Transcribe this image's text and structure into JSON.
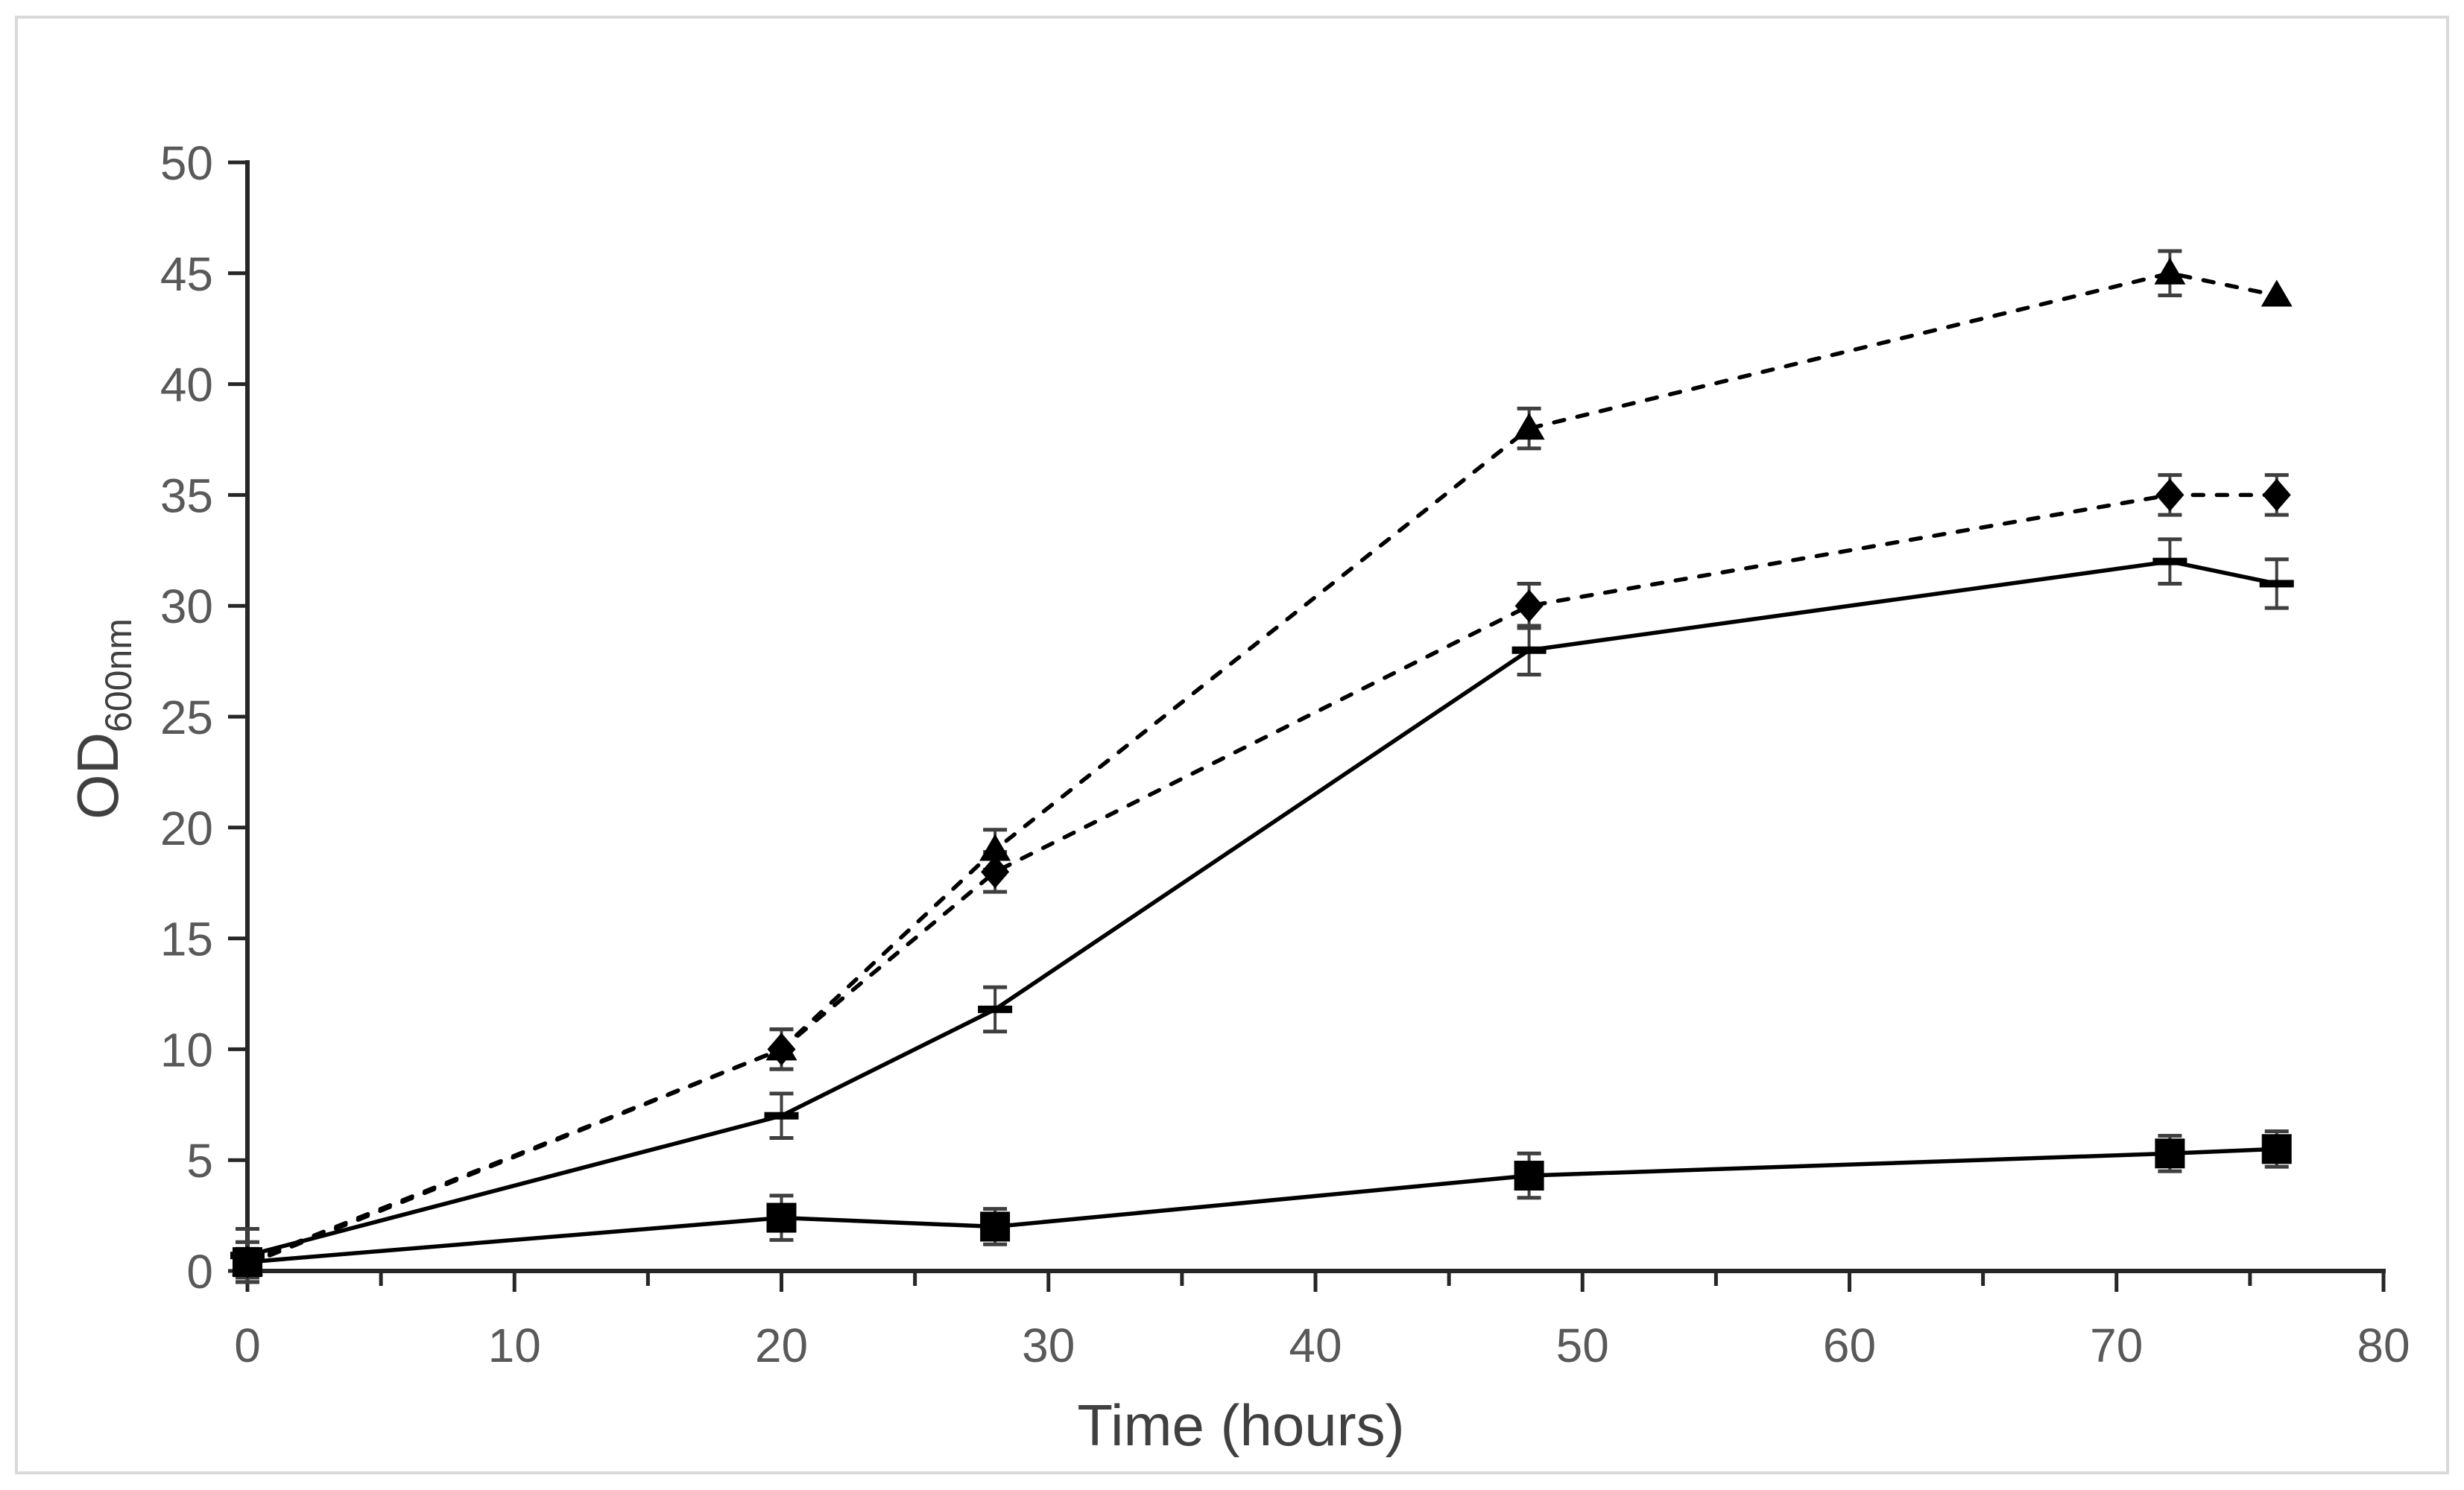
{
  "figure": {
    "background": "#ffffff",
    "border_color": "#d9d9d9"
  },
  "chart_data": {
    "type": "line",
    "title": "",
    "xlabel": "Time (hours)",
    "ylabel_main": "OD",
    "ylabel_sub": "600nm",
    "xlim": [
      0,
      80
    ],
    "ylim": [
      0,
      50
    ],
    "x_major_tick_step": 10,
    "x_minor_tick_step": 5,
    "y_tick_step": 5,
    "x_tick_labels": [
      "0",
      "10",
      "20",
      "30",
      "40",
      "50",
      "60",
      "70",
      "80"
    ],
    "y_tick_labels": [
      "0",
      "5",
      "10",
      "15",
      "20",
      "25",
      "30",
      "35",
      "40",
      "45",
      "50"
    ],
    "grid": false,
    "legend": "none",
    "axis_color": "#262626",
    "tick_label_color": "#595959",
    "axis_title_color": "#404040",
    "series_color": "#000000",
    "error_bar_color": "#3f3f3f",
    "series": [
      {
        "name": "triangle-dashed",
        "marker": "triangle",
        "line_style": "dashed",
        "x": [
          0,
          20,
          28,
          48,
          72,
          76
        ],
        "y": [
          0.3,
          10,
          19,
          38,
          45,
          44
        ],
        "err": [
          0.6,
          0.9,
          0.9,
          0.9,
          1.0,
          0
        ]
      },
      {
        "name": "diamond-dashed",
        "marker": "diamond",
        "line_style": "dashed",
        "x": [
          0,
          20,
          28,
          48,
          72,
          76
        ],
        "y": [
          0.4,
          10,
          18,
          30,
          35,
          35
        ],
        "err": [
          0.6,
          0.9,
          0.9,
          1.0,
          0.9,
          0.9
        ]
      },
      {
        "name": "dash-solid",
        "marker": "dash",
        "line_style": "solid",
        "x": [
          0,
          20,
          28,
          48,
          72,
          76
        ],
        "y": [
          0.7,
          7,
          11.8,
          28,
          32,
          31
        ],
        "err": [
          1.2,
          1.0,
          1.0,
          1.1,
          1.0,
          1.1
        ]
      },
      {
        "name": "square-solid",
        "marker": "square",
        "line_style": "solid",
        "x": [
          0,
          20,
          28,
          48,
          72,
          76
        ],
        "y": [
          0.4,
          2.4,
          2.0,
          4.3,
          5.3,
          5.5
        ],
        "err": [
          0.9,
          1.0,
          0.8,
          1.0,
          0.8,
          0.8
        ]
      }
    ]
  }
}
